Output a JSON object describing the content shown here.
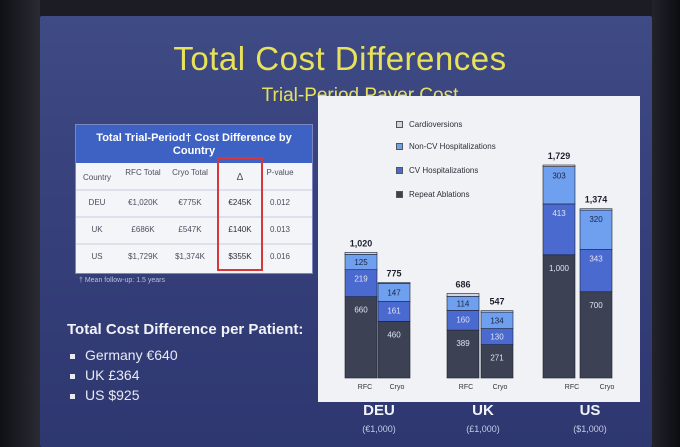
{
  "slide": {
    "title": "Total Cost Differences",
    "subtitle": "Trial-Period Payer Cost"
  },
  "table": {
    "header": "Total Trial-Period† Cost Difference by Country",
    "columns": [
      "Country",
      "RFC Total",
      "Cryo Total",
      "Δ",
      "P-value"
    ],
    "rows": [
      [
        "DEU",
        "€1,020K",
        "€775K",
        "€245K",
        "0.012"
      ],
      [
        "UK",
        "£686K",
        "£547K",
        "£140K",
        "0.013"
      ],
      [
        "US",
        "$1,729K",
        "$1,374K",
        "$355K",
        "0.016"
      ]
    ],
    "footnote": "† Mean follow-up: 1.5 years"
  },
  "summary": {
    "title": "Total Cost Difference per Patient:",
    "items": [
      "Germany €640",
      "UK £364",
      "US $925"
    ]
  },
  "chart_data": {
    "type": "bar",
    "stacked": true,
    "groups": [
      {
        "label": "DEU",
        "unit": "(€1,000)"
      },
      {
        "label": "UK",
        "unit": "(£1,000)"
      },
      {
        "label": "US",
        "unit": "($1,000)"
      }
    ],
    "categories": [
      "RFC",
      "Cryo",
      "RFC",
      "Cryo",
      "RFC",
      "Cryo"
    ],
    "series": [
      {
        "name": "Repeat Ablations",
        "color": "#3c4254",
        "values": [
          660,
          460,
          389,
          271,
          1000,
          700
        ]
      },
      {
        "name": "CV Hospitalizations",
        "color": "#4a6ad0",
        "values": [
          219,
          161,
          160,
          130,
          413,
          343
        ]
      },
      {
        "name": "Non-CV Hospitalizations",
        "color": "#6fa0f0",
        "values": [
          125,
          147,
          114,
          134,
          303,
          320
        ]
      },
      {
        "name": "Cardioversions",
        "color": "#cfd4e6",
        "values": [
          16,
          7,
          23,
          12,
          13,
          11
        ]
      }
    ],
    "totals": [
      1020,
      775,
      686,
      547,
      1729,
      1374
    ],
    "segment_labels": [
      [
        "660",
        "219",
        "125"
      ],
      [
        "460",
        "161",
        "147"
      ],
      [
        "389",
        "160",
        "114"
      ],
      [
        "271",
        "130",
        "134"
      ],
      [
        "1,000",
        "413",
        "303"
      ],
      [
        "700",
        "343",
        "320"
      ]
    ],
    "total_labels": [
      "1,020",
      "775",
      "686",
      "547",
      "1,729",
      "1,374"
    ],
    "legend_order": [
      "Cardioversions",
      "Non-CV Hospitalizations",
      "CV Hospitalizations",
      "Repeat Ablations"
    ],
    "legend_position": "top-left",
    "grid": false
  }
}
